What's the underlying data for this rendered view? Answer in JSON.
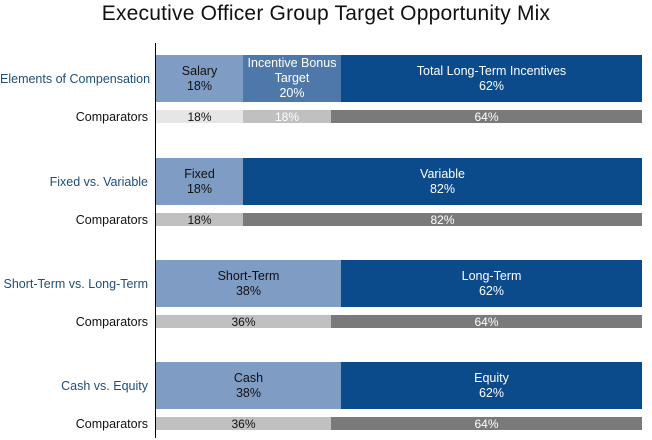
{
  "title": "Executive Officer Group Target Opportunity Mix",
  "colors": {
    "light_blue": "#7f9cc5",
    "mid_blue": "#4f78aa",
    "dark_blue": "#0b4a8b",
    "comp_very_light": "#e6e6e6",
    "comp_light": "#c0c0c0",
    "comp_dark": "#7a7a7a",
    "text_dark": "#111111",
    "text_white": "#ffffff"
  },
  "chart_data": {
    "type": "bar",
    "orientation": "horizontal",
    "stacked": true,
    "xlim": [
      0,
      100
    ],
    "groups": [
      {
        "label": "Elements of Compensation",
        "segments": [
          {
            "name": "Salary",
            "value": 18,
            "text": "18%",
            "color": "#7f9cc5",
            "text_color": "#111111"
          },
          {
            "name": "Incentive Bonus\nTarget",
            "value": 20,
            "text": "20%",
            "color": "#4f78aa",
            "text_color": "#ffffff"
          },
          {
            "name": "Total Long-Term Incentives",
            "value": 62,
            "text": "62%",
            "color": "#0b4a8b",
            "text_color": "#ffffff"
          }
        ],
        "comparators": {
          "label": "Comparators",
          "segments": [
            {
              "value": 18,
              "text": "18%",
              "color": "#e6e6e6",
              "text_color": "#111111"
            },
            {
              "value": 18,
              "text": "18%",
              "color": "#c0c0c0",
              "text_color": "#ffffff"
            },
            {
              "value": 64,
              "text": "64%",
              "color": "#7a7a7a",
              "text_color": "#ffffff"
            }
          ]
        }
      },
      {
        "label": "Fixed vs. Variable",
        "segments": [
          {
            "name": "Fixed",
            "value": 18,
            "text": "18%",
            "color": "#7f9cc5",
            "text_color": "#111111"
          },
          {
            "name": "Variable",
            "value": 82,
            "text": "82%",
            "color": "#0b4a8b",
            "text_color": "#ffffff"
          }
        ],
        "comparators": {
          "label": "Comparators",
          "segments": [
            {
              "value": 18,
              "text": "18%",
              "color": "#c0c0c0",
              "text_color": "#111111"
            },
            {
              "value": 82,
              "text": "82%",
              "color": "#7a7a7a",
              "text_color": "#ffffff"
            }
          ]
        }
      },
      {
        "label": "Short-Term vs. Long-Term",
        "segments": [
          {
            "name": "Short-Term",
            "value": 38,
            "text": "38%",
            "color": "#7f9cc5",
            "text_color": "#111111"
          },
          {
            "name": "Long-Term",
            "value": 62,
            "text": "62%",
            "color": "#0b4a8b",
            "text_color": "#ffffff"
          }
        ],
        "comparators": {
          "label": "Comparators",
          "segments": [
            {
              "value": 36,
              "text": "36%",
              "color": "#c0c0c0",
              "text_color": "#111111"
            },
            {
              "value": 64,
              "text": "64%",
              "color": "#7a7a7a",
              "text_color": "#ffffff"
            }
          ]
        }
      },
      {
        "label": "Cash vs. Equity",
        "segments": [
          {
            "name": "Cash",
            "value": 38,
            "text": "38%",
            "color": "#7f9cc5",
            "text_color": "#111111"
          },
          {
            "name": "Equity",
            "value": 62,
            "text": "62%",
            "color": "#0b4a8b",
            "text_color": "#ffffff"
          }
        ],
        "comparators": {
          "label": "Comparators",
          "segments": [
            {
              "value": 36,
              "text": "36%",
              "color": "#c0c0c0",
              "text_color": "#111111"
            },
            {
              "value": 64,
              "text": "64%",
              "color": "#7a7a7a",
              "text_color": "#ffffff"
            }
          ]
        }
      }
    ]
  }
}
